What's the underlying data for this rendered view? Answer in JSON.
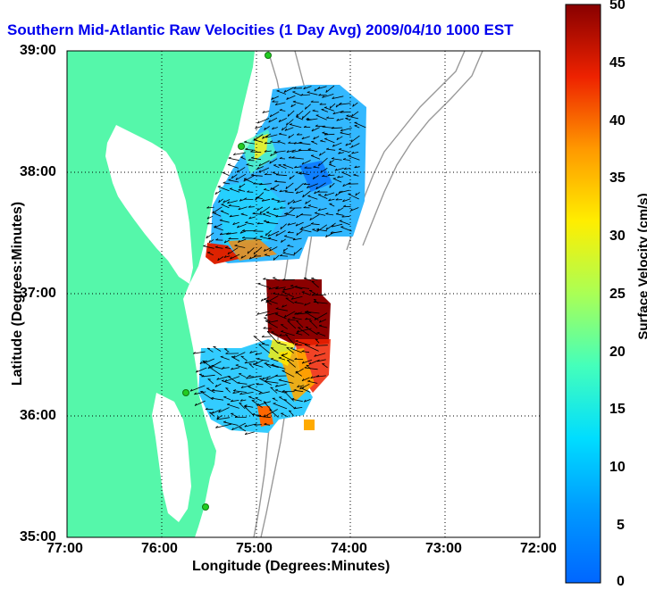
{
  "title": "Southern Mid-Atlantic Raw Velocities (1 Day Avg) 2009/04/10 1000 EST",
  "map": {
    "x_axis_label": "Longitude (Degrees:Minutes)",
    "y_axis_label": "Latitude (Degrees:Minutes)",
    "x_ticks": [
      "77:00",
      "76:00",
      "75:00",
      "74:00",
      "73:00",
      "72:00"
    ],
    "y_ticks": [
      "39:00",
      "38:00",
      "37:00",
      "36:00",
      "35:00"
    ],
    "land_color": "#55f7aa",
    "grid": "dotted"
  },
  "colorbar": {
    "label": "Surface Velocity (cm/s)",
    "ticks": [
      "50",
      "45",
      "40",
      "35",
      "30",
      "25",
      "20",
      "15",
      "10",
      "5",
      "0"
    ],
    "min": 0,
    "max": 50,
    "colormap": "jet"
  },
  "chart_data": {
    "type": "heatmap",
    "title": "Southern Mid-Atlantic Raw Velocities (1 Day Avg) 2009/04/10 1000 EST",
    "xlabel": "Longitude (Degrees:Minutes)",
    "ylabel": "Latitude (Degrees:Minutes)",
    "xlim": [
      -77,
      -72
    ],
    "ylim": [
      35,
      39
    ],
    "color_range": [
      0,
      50
    ],
    "color_units": "cm/s",
    "regions": [
      {
        "name": "",
        "lon": [
          -75.5,
          -73.9
        ],
        "lat": [
          37.25,
          38.75
        ],
        "typical_speed": [
          8,
          15
        ],
        "max_speed": 45
      },
      {
        "name": "",
        "lon": [
          -75.6,
          -74.2
        ],
        "lat": [
          35.85,
          36.9
        ],
        "typical_speed": [
          10,
          20
        ],
        "max_speed": 50
      }
    ]
  }
}
